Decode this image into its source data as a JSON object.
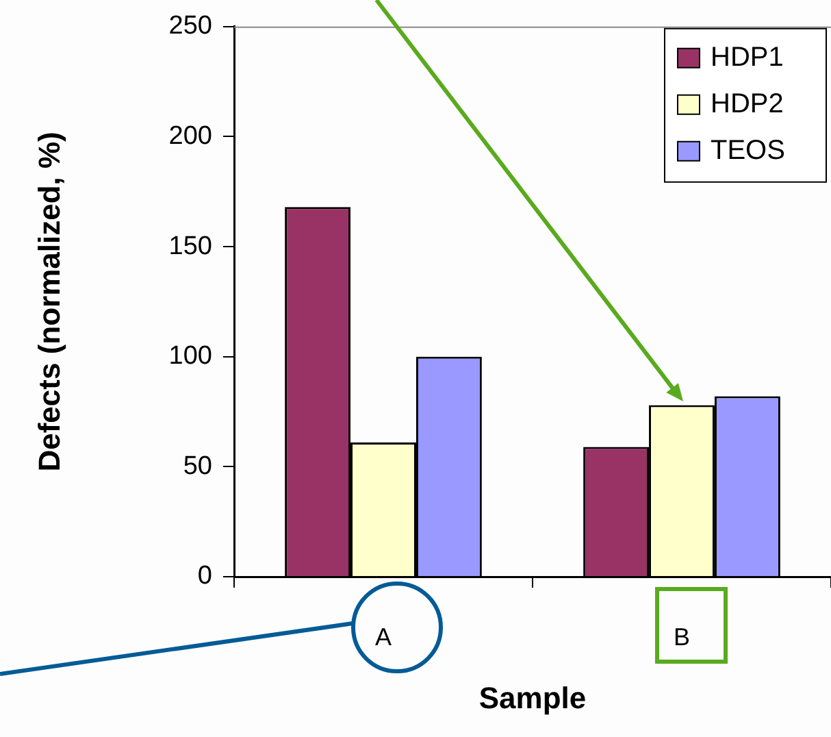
{
  "chart_data": {
    "type": "bar",
    "xlabel": "Sample",
    "ylabel": "Defects (normalized, %)",
    "categories": [
      "A",
      "B"
    ],
    "series": [
      {
        "name": "HDP1",
        "color": "#993366",
        "values": [
          168,
          59
        ]
      },
      {
        "name": "HDP2",
        "color": "#ffffcc",
        "values": [
          61,
          78
        ]
      },
      {
        "name": "TEOS",
        "color": "#9999ff",
        "values": [
          100,
          82
        ]
      }
    ],
    "ylim": [
      0,
      250
    ],
    "yticks": [
      0,
      50,
      100,
      150,
      200,
      250
    ],
    "legend": "top right"
  }
}
